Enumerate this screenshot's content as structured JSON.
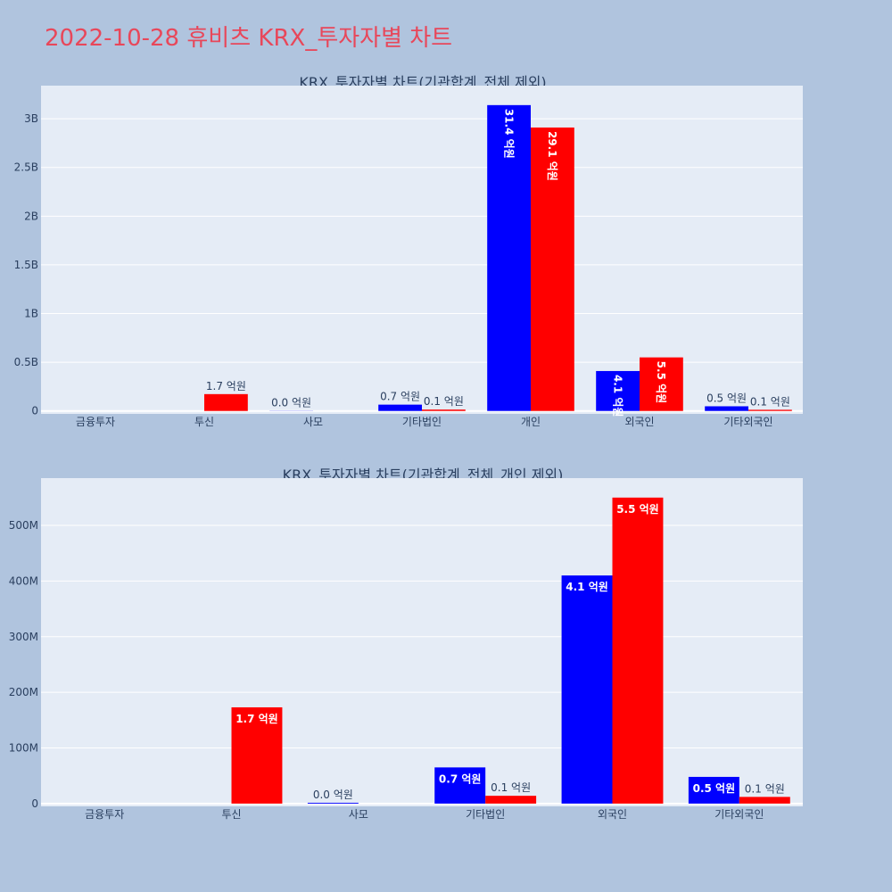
{
  "title": "2022-10-28 휴비츠 KRX_투자자별 차트",
  "colors": {
    "background": "#b0c4de",
    "plot_bg": "#e5ecf6",
    "buy": "#0000ff",
    "sell": "#ff0000",
    "title": "#e8475a",
    "text": "#2a3f5f"
  },
  "chart_data": [
    {
      "type": "bar",
      "title": "KRX_투자자별 차트(기관합계_전체 제외)",
      "categories": [
        "금융투자",
        "투신",
        "사모",
        "기타법인",
        "개인",
        "외국인",
        "기타외국인"
      ],
      "series": [
        {
          "color": "#0000ff",
          "values": [
            0,
            0,
            1500000,
            65000000,
            3140000000,
            410000000,
            48000000
          ],
          "labels": [
            "",
            "",
            "0.0 억원",
            "0.7 억원",
            "31.4 억원",
            "4.1 억원",
            "0.5 억원"
          ]
        },
        {
          "color": "#ff0000",
          "values": [
            0,
            173000000,
            0,
            14000000,
            2910000000,
            550000000,
            12000000
          ],
          "labels": [
            "",
            "1.7 억원",
            "",
            "0.1 억원",
            "29.1 억원",
            "5.5 억원",
            "0.1 억원"
          ]
        }
      ],
      "yticks": [
        0,
        500000000,
        1000000000,
        1500000000,
        2000000000,
        2500000000,
        3000000000
      ],
      "yticklabels": [
        "0",
        "0.5B",
        "1B",
        "1.5B",
        "2B",
        "2.5B",
        "3B"
      ],
      "ylim": [
        -30000000,
        3340000000
      ],
      "grid": true
    },
    {
      "type": "bar",
      "title": "KRX_투자자별 차트(기관합계_전체_개인 제외)",
      "categories": [
        "금융투자",
        "투신",
        "사모",
        "기타법인",
        "외국인",
        "기타외국인"
      ],
      "series": [
        {
          "color": "#0000ff",
          "values": [
            0,
            0,
            1500000,
            65000000,
            410000000,
            48000000
          ],
          "labels": [
            "",
            "",
            "0.0 억원",
            "0.7 억원",
            "4.1 억원",
            "0.5 억원"
          ]
        },
        {
          "color": "#ff0000",
          "values": [
            0,
            173000000,
            0,
            14000000,
            550000000,
            12000000
          ],
          "labels": [
            "",
            "1.7 억원",
            "",
            "0.1 억원",
            "5.5 억원",
            "0.1 억원"
          ]
        }
      ],
      "yticks": [
        0,
        100000000,
        200000000,
        300000000,
        400000000,
        500000000
      ],
      "yticklabels": [
        "0",
        "100M",
        "200M",
        "300M",
        "400M",
        "500M"
      ],
      "ylim": [
        -5000000,
        585000000
      ],
      "grid": true
    }
  ]
}
